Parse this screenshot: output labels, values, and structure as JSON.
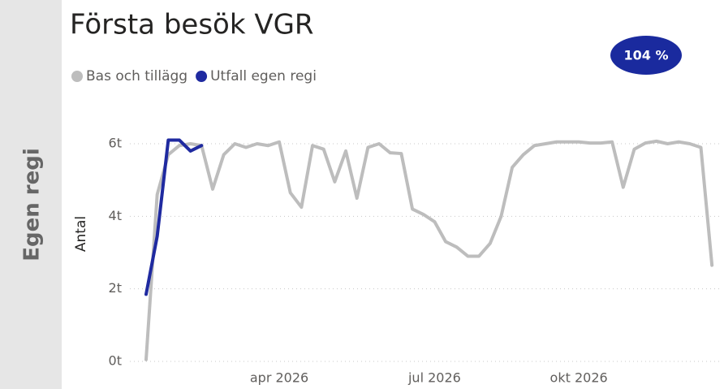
{
  "chart_data": {
    "type": "line",
    "panel_label": "Egen regi",
    "title": "Första besök VGR",
    "kpi_label": "104 %",
    "kpi_color": "#1a2a9e",
    "y_label": "Antal",
    "categories": [
      null,
      null,
      null,
      null,
      null,
      null,
      null,
      null,
      null,
      null,
      null,
      null,
      "apr 2026",
      null,
      null,
      null,
      null,
      null,
      null,
      null,
      null,
      null,
      null,
      null,
      null,
      null,
      "jul 2026",
      null,
      null,
      null,
      null,
      null,
      null,
      null,
      null,
      null,
      null,
      null,
      null,
      "okt 2026",
      null,
      null,
      null,
      null,
      null,
      null,
      null,
      null,
      null,
      null,
      null,
      null
    ],
    "ylim": [
      0,
      6000
    ],
    "yticks": [
      {
        "value": 0,
        "label": "0t"
      },
      {
        "value": 2000,
        "label": "2t"
      },
      {
        "value": 4000,
        "label": "4t"
      },
      {
        "value": 6000,
        "label": "6t"
      }
    ],
    "grid": true,
    "series": [
      {
        "name": "Bas och tillägg",
        "color": "#bdbdbd",
        "values": [
          50,
          4600,
          5700,
          5950,
          6000,
          5950,
          4750,
          5700,
          6000,
          5900,
          6000,
          5950,
          6050,
          4650,
          4250,
          5950,
          5850,
          4950,
          5800,
          4500,
          5900,
          6000,
          5750,
          5730,
          4200,
          4050,
          3850,
          3300,
          3150,
          2900,
          2900,
          3250,
          4000,
          5350,
          5700,
          5950,
          6000,
          6050,
          6050,
          6050,
          6020,
          6020,
          6050,
          4800,
          5850,
          6020,
          6070,
          6000,
          6050,
          6000,
          5900,
          2650
        ]
      },
      {
        "name": "Utfall egen regi",
        "color": "#1f2aa0",
        "values": [
          1850,
          3450,
          6100,
          6100,
          5800,
          5950,
          null,
          null,
          null,
          null,
          null,
          null,
          null,
          null,
          null,
          null,
          null,
          null,
          null,
          null,
          null,
          null,
          null,
          null,
          null,
          null,
          null,
          null,
          null,
          null,
          null,
          null,
          null,
          null,
          null,
          null,
          null,
          null,
          null,
          null,
          null,
          null,
          null,
          null,
          null,
          null,
          null,
          null,
          null,
          null,
          null,
          null
        ]
      }
    ]
  }
}
